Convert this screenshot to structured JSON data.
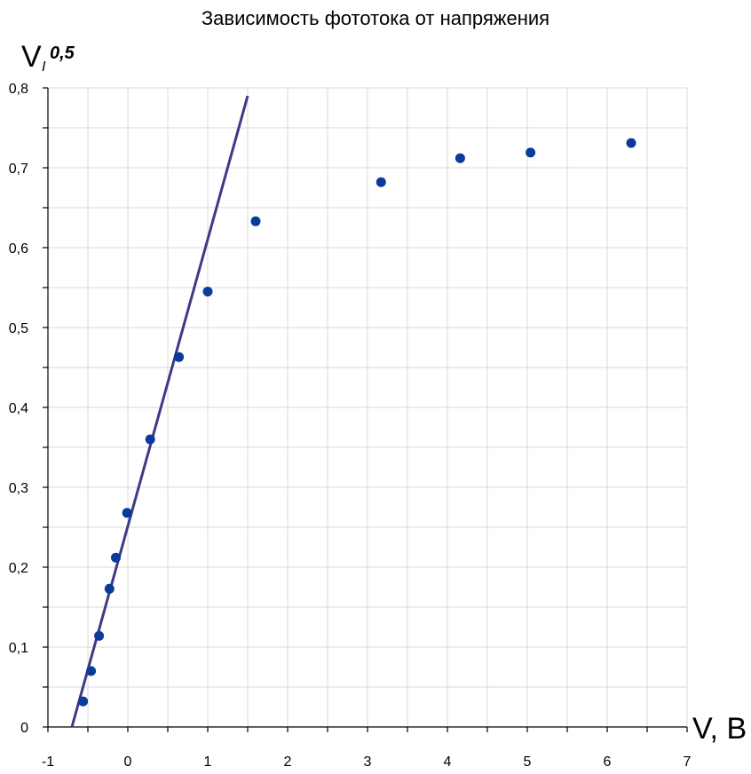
{
  "chart_data": {
    "type": "scatter",
    "title": "Зависимость фототока от напряжения",
    "xlabel": "V, В",
    "ylabel_main": "V",
    "ylabel_sub": "I",
    "ylabel_sup": "0,5",
    "xlim": [
      -1,
      7
    ],
    "ylim": [
      0,
      0.8
    ],
    "x_ticks": [
      "-1",
      "0",
      "1",
      "2",
      "3",
      "4",
      "5",
      "6",
      "7"
    ],
    "y_ticks": [
      "0",
      "0,1",
      "0,2",
      "0,3",
      "0,4",
      "0,5",
      "0,6",
      "0,7",
      "0,8"
    ],
    "grid": true,
    "points": [
      {
        "x": -0.56,
        "y": 0.032
      },
      {
        "x": -0.46,
        "y": 0.07
      },
      {
        "x": -0.36,
        "y": 0.114
      },
      {
        "x": -0.23,
        "y": 0.173
      },
      {
        "x": -0.15,
        "y": 0.212
      },
      {
        "x": -0.01,
        "y": 0.268
      },
      {
        "x": 0.28,
        "y": 0.36
      },
      {
        "x": 0.64,
        "y": 0.463
      },
      {
        "x": 1.0,
        "y": 0.545
      },
      {
        "x": 1.6,
        "y": 0.633
      },
      {
        "x": 3.17,
        "y": 0.682
      },
      {
        "x": 4.16,
        "y": 0.712
      },
      {
        "x": 5.04,
        "y": 0.719
      },
      {
        "x": 6.3,
        "y": 0.731
      }
    ],
    "fit_line": {
      "x": [
        -0.7,
        1.5
      ],
      "y": [
        0.0,
        0.79
      ]
    },
    "colors": {
      "points": "#0a3a9a",
      "line": "#3d3a86",
      "grid": "#d9d9d9"
    }
  }
}
